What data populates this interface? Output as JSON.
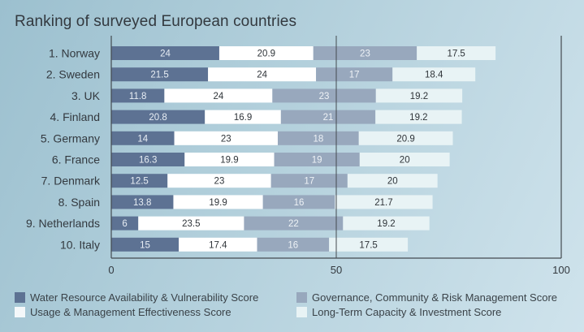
{
  "chart_data": {
    "type": "bar",
    "orientation": "horizontal",
    "stacked": true,
    "title": "Ranking of surveyed European countries",
    "xlabel": "",
    "ylabel": "",
    "xlim": [
      0,
      100
    ],
    "xticks": [
      0,
      50,
      100
    ],
    "grid": false,
    "legend_position": "bottom",
    "categories": [
      "1. Norway",
      "2. Sweden",
      "3. UK",
      "4. Finland",
      "5. Germany",
      "6. France",
      "7. Denmark",
      "8. Spain",
      "9. Netherlands",
      "10. Italy"
    ],
    "series": [
      {
        "name": "Water Resource Availability & Vulnerability Score",
        "color": "#5d7293",
        "label_color": "#e8eef4",
        "values": [
          24,
          21.5,
          11.8,
          20.8,
          14,
          16.3,
          12.5,
          13.8,
          6,
          15
        ]
      },
      {
        "name": "Usage & Management Effectiveness Score",
        "color": "#ffffff",
        "label_color": "#2f3439",
        "values": [
          20.9,
          24,
          24,
          16.9,
          23,
          19.9,
          23,
          19.9,
          23.5,
          17.4
        ]
      },
      {
        "name": "Governance, Community & Risk Management Score",
        "color": "#98a8bd",
        "label_color": "#eef2f6",
        "values": [
          23,
          17,
          23,
          21,
          18,
          19,
          17,
          16,
          22,
          16
        ]
      },
      {
        "name": "Long-Term Capacity & Investment Score",
        "color": "#e8f3f5",
        "label_color": "#2f3439",
        "values": [
          17.5,
          18.4,
          19.2,
          19.2,
          20.9,
          20,
          20,
          21.7,
          19.2,
          17.5
        ]
      }
    ]
  }
}
